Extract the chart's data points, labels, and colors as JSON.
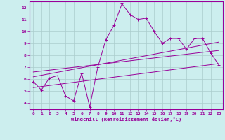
{
  "xlabel": "Windchill (Refroidissement éolien,°C)",
  "x_values": [
    0,
    1,
    2,
    3,
    4,
    5,
    6,
    7,
    8,
    9,
    10,
    11,
    12,
    13,
    14,
    15,
    16,
    17,
    18,
    19,
    20,
    21,
    22,
    23
  ],
  "main_line": [
    5.8,
    5.1,
    6.1,
    6.3,
    4.6,
    4.2,
    6.5,
    3.7,
    7.0,
    9.3,
    10.5,
    12.3,
    11.4,
    11.0,
    11.1,
    10.0,
    9.0,
    9.4,
    9.4,
    8.5,
    9.4,
    9.4,
    8.2,
    7.2
  ],
  "trend_line1_x": [
    0,
    23
  ],
  "trend_line1_y": [
    6.2,
    9.1
  ],
  "trend_line2_x": [
    0,
    23
  ],
  "trend_line2_y": [
    6.6,
    8.4
  ],
  "trend_line3_x": [
    0,
    23
  ],
  "trend_line3_y": [
    5.3,
    7.3
  ],
  "line_color": "#990099",
  "bg_color": "#cceeee",
  "grid_color": "#aacccc",
  "ylim": [
    3.5,
    12.5
  ],
  "xlim": [
    -0.5,
    23.5
  ],
  "yticks": [
    4,
    5,
    6,
    7,
    8,
    9,
    10,
    11,
    12
  ],
  "xticks": [
    0,
    1,
    2,
    3,
    4,
    5,
    6,
    7,
    8,
    9,
    10,
    11,
    12,
    13,
    14,
    15,
    16,
    17,
    18,
    19,
    20,
    21,
    22,
    23
  ]
}
